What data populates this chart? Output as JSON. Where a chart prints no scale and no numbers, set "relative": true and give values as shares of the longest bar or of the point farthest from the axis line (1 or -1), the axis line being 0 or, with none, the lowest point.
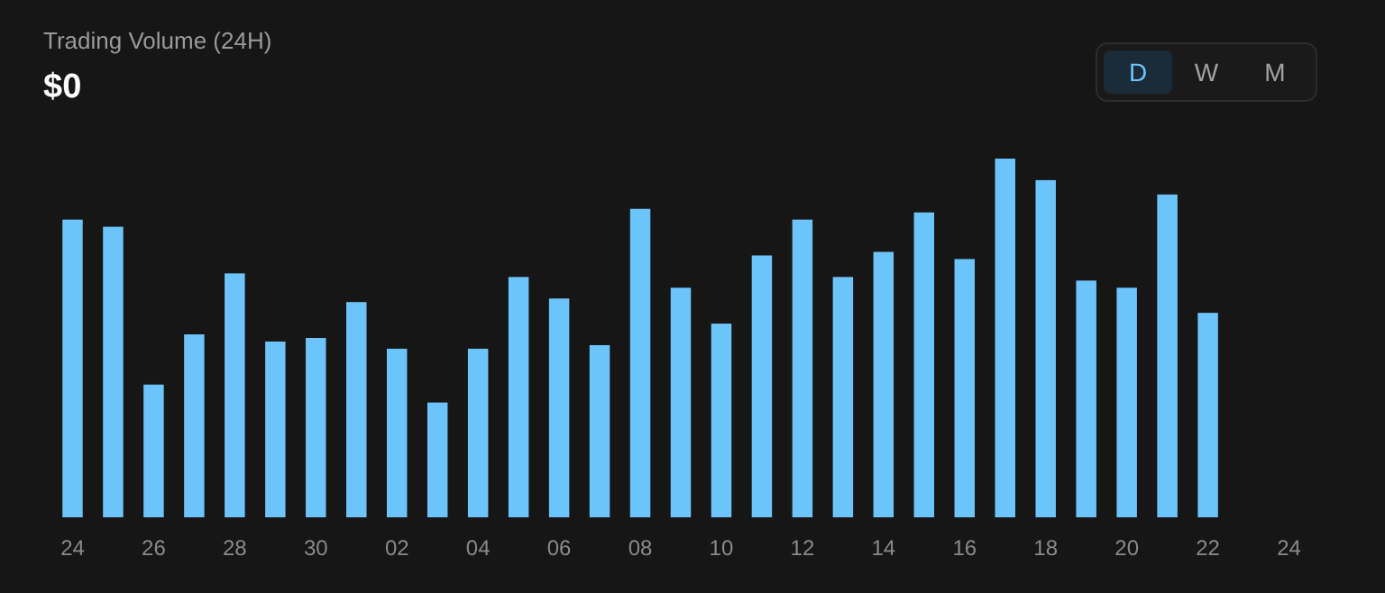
{
  "chart_data": {
    "type": "bar",
    "title": "Trading Volume (24H)",
    "subtitle": "$0",
    "relative": true,
    "categories": [
      "24",
      null,
      "26",
      null,
      "28",
      null,
      "30",
      null,
      "02",
      null,
      "04",
      null,
      "06",
      null,
      "08",
      null,
      "10",
      null,
      "12",
      null,
      "14",
      null,
      "16",
      null,
      "18",
      null,
      "20",
      null,
      "22",
      null,
      "24"
    ],
    "values": [
      0.83,
      0.81,
      0.37,
      0.51,
      0.68,
      0.49,
      0.5,
      0.6,
      0.47,
      0.32,
      0.47,
      0.67,
      0.61,
      0.48,
      0.86,
      0.64,
      0.54,
      0.73,
      0.83,
      0.67,
      0.74,
      0.85,
      0.72,
      1,
      0.94,
      0.66,
      0.64,
      0.9,
      0.57,
      null,
      null
    ],
    "color": "#6cc4fb",
    "annotations": [
      "D",
      "W",
      "M"
    ]
  }
}
